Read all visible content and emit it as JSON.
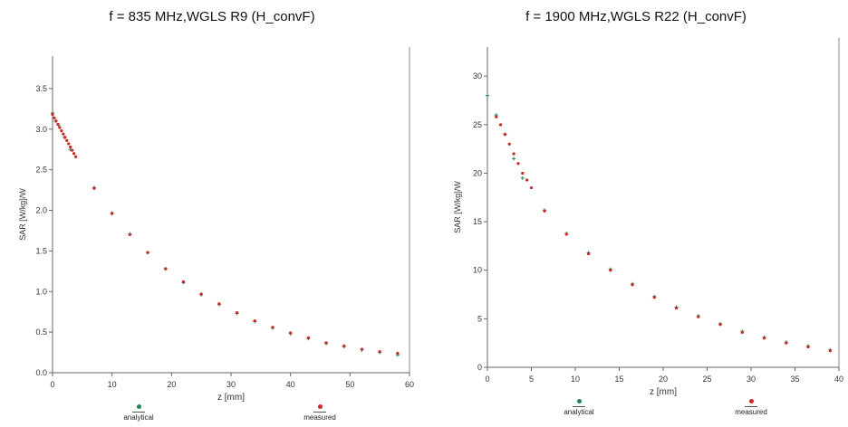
{
  "chart_data": [
    {
      "type": "scatter",
      "title": "f = 835 MHz,WGLS R9 (H_convF)",
      "xlabel": "z [mm]",
      "ylabel": "SAR [W/kg]/W",
      "xlim": [
        0,
        60
      ],
      "ylim": [
        0,
        3.9
      ],
      "xticks": [
        "0",
        "10",
        "20",
        "30",
        "40",
        "50",
        "60"
      ],
      "yticks": [
        "0.0",
        "0.5",
        "1.0",
        "1.5",
        "2.0",
        "2.5",
        "3.0",
        "3.5"
      ],
      "series": [
        {
          "name": "analytical",
          "color": "#1a8a4a",
          "x": [
            0,
            0.5,
            1,
            2,
            3,
            7,
            10,
            13,
            16,
            19,
            22,
            25,
            28,
            31,
            34,
            37,
            40,
            43,
            46,
            49,
            52,
            55,
            58
          ],
          "y": [
            3.2,
            3.1,
            3.05,
            2.9,
            2.75,
            2.28,
            1.97,
            1.71,
            1.48,
            1.28,
            1.11,
            0.96,
            0.84,
            0.73,
            0.63,
            0.55,
            0.48,
            0.42,
            0.36,
            0.32,
            0.28,
            0.25,
            0.22
          ]
        },
        {
          "name": "measured",
          "color": "#e02020",
          "x": [
            0,
            0.3,
            0.6,
            0.9,
            1.2,
            1.5,
            1.8,
            2.1,
            2.4,
            2.7,
            3.0,
            3.3,
            3.6,
            3.9,
            7,
            10,
            13,
            16,
            19,
            22,
            25,
            28,
            31,
            34,
            37,
            40,
            43,
            46,
            49,
            52,
            55,
            58
          ],
          "y": [
            3.18,
            3.14,
            3.1,
            3.06,
            3.02,
            2.98,
            2.94,
            2.9,
            2.86,
            2.82,
            2.78,
            2.74,
            2.7,
            2.66,
            2.27,
            1.96,
            1.7,
            1.48,
            1.28,
            1.12,
            0.97,
            0.85,
            0.74,
            0.64,
            0.56,
            0.49,
            0.43,
            0.37,
            0.33,
            0.29,
            0.26,
            0.24
          ]
        }
      ],
      "legend": {
        "analytical": "analytical",
        "measured": "measured",
        "position": "bottom"
      }
    },
    {
      "type": "scatter",
      "title": "f = 1900 MHz,WGLS R22 (H_convF)",
      "xlabel": "z [mm]",
      "ylabel": "SAR [W/kg]/W",
      "xlim": [
        0,
        40
      ],
      "ylim": [
        0,
        33
      ],
      "xticks": [
        "0",
        "5",
        "10",
        "15",
        "20",
        "25",
        "30",
        "35",
        "40"
      ],
      "yticks": [
        "0",
        "5",
        "10",
        "15",
        "20",
        "25",
        "30"
      ],
      "series": [
        {
          "name": "analytical",
          "color": "#1a8a4a",
          "x": [
            0,
            1,
            2,
            3,
            4,
            6.5,
            9,
            11.5,
            14,
            16.5,
            19,
            21.5,
            24,
            26.5,
            29,
            31.5,
            34,
            36.5,
            39
          ],
          "y": [
            28,
            26,
            24,
            21.5,
            19.5,
            16.2,
            13.8,
            11.8,
            10.1,
            8.6,
            7.3,
            6.2,
            5.3,
            4.5,
            3.7,
            3.1,
            2.6,
            2.2,
            1.8
          ]
        },
        {
          "name": "measured",
          "color": "#e02020",
          "x": [
            1,
            1.5,
            2,
            2.5,
            3,
            3.5,
            4,
            4.5,
            5,
            6.5,
            9,
            11.5,
            14,
            16.5,
            19,
            21.5,
            24,
            26.5,
            29,
            31.5,
            34,
            36.5,
            39
          ],
          "y": [
            25.8,
            25,
            24,
            23,
            22,
            21,
            20,
            19.3,
            18.5,
            16.1,
            13.7,
            11.7,
            10,
            8.5,
            7.2,
            6.1,
            5.2,
            4.4,
            3.6,
            3.0,
            2.5,
            2.1,
            1.7
          ]
        }
      ],
      "legend": {
        "analytical": "analytical",
        "measured": "measured",
        "position": "bottom"
      }
    }
  ]
}
